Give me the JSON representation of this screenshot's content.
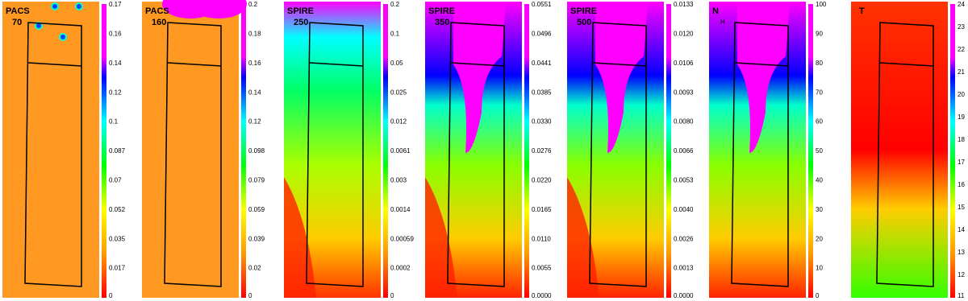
{
  "panels": [
    {
      "label": [
        "PACS",
        "70"
      ],
      "colorbar_ticks": [
        "0.17",
        "0.16",
        "0.14",
        "0.12",
        "0.1",
        "0.087",
        "0.07",
        "0.052",
        "0.035",
        "0.017",
        "0"
      ]
    },
    {
      "label": [
        "PACS",
        "160"
      ],
      "colorbar_ticks": [
        "0.2",
        "0.18",
        "0.16",
        "0.14",
        "0.12",
        "0.098",
        "0.079",
        "0.059",
        "0.039",
        "0.02",
        "0"
      ]
    },
    {
      "label": [
        "SPIRE",
        "250"
      ],
      "colorbar_ticks": [
        "0.2",
        "0.1",
        "0.05",
        "0.025",
        "0.012",
        "0.0061",
        "0.003",
        "0.0014",
        "0.00059",
        "0.0002",
        "0"
      ]
    },
    {
      "label": [
        "SPIRE",
        "350"
      ],
      "colorbar_ticks": [
        "0.0551",
        "0.0496",
        "0.0441",
        "0.0385",
        "0.0330",
        "0.0276",
        "0.0220",
        "0.0165",
        "0.0110",
        "0.0055",
        "0.0000"
      ]
    },
    {
      "label": [
        "SPIRE",
        "500"
      ],
      "colorbar_ticks": [
        "0.0133",
        "0.0120",
        "0.0106",
        "0.0093",
        "0.0080",
        "0.0066",
        "0.0053",
        "0.0040",
        "0.0026",
        "0.0013",
        "0.0000"
      ]
    },
    {
      "label": [
        "N",
        "H"
      ],
      "colorbar_ticks": [
        "100",
        "90",
        "80",
        "70",
        "60",
        "50",
        "40",
        "30",
        "20",
        "10",
        "0"
      ]
    },
    {
      "label": [
        "T"
      ],
      "colorbar_ticks": [
        "24",
        "23",
        "22",
        "21",
        "20",
        "19",
        "18",
        "17",
        "16",
        "15",
        "14",
        "13",
        "12",
        "11"
      ]
    }
  ]
}
